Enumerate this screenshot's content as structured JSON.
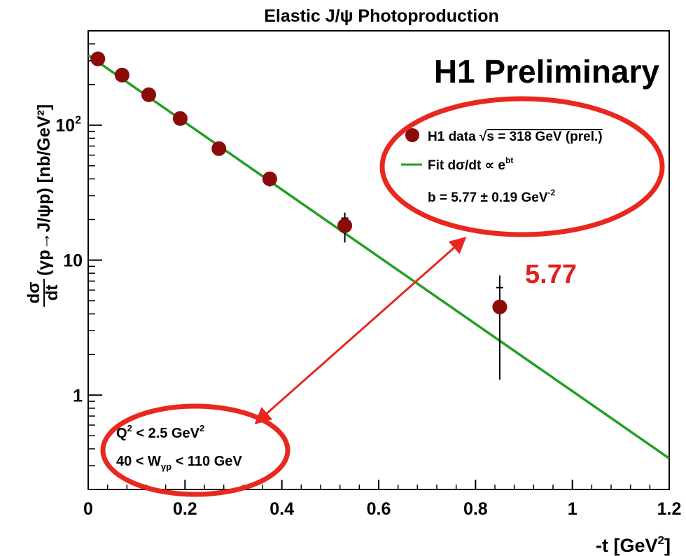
{
  "chart_data": {
    "type": "scatter",
    "title": "Elastic J/ψ Photoproduction",
    "xlabel": "-t [GeV²]",
    "ylabel": "dσ/dt(γp→J/ψp) [nb/GeV²]",
    "ylabel_frac": {
      "num": "dσ",
      "den": "dt"
    },
    "ylabel_rest": "(γp→J/ψp) [nb/GeV²]",
    "xlabel_text": {
      "base": "-t [GeV",
      "sup": "2",
      "close": "]"
    },
    "xlim": [
      0,
      1.2
    ],
    "ylim": [
      0.2,
      500
    ],
    "yscale": "log",
    "x_ticks": [
      "0",
      "0.2",
      "0.4",
      "0.6",
      "0.8",
      "1",
      "1.2"
    ],
    "y_ticks": [
      {
        "value": 1,
        "label": "1"
      },
      {
        "value": 10,
        "label": "10"
      },
      {
        "value": 100,
        "label": "10",
        "sup": "2"
      }
    ],
    "series": [
      {
        "name": "H1 data √s = 318 GeV (prel.)",
        "kind": "points",
        "color": "#8b0a0a",
        "points": [
          {
            "x": 0.02,
            "y": 310,
            "err": 30
          },
          {
            "x": 0.07,
            "y": 235,
            "err": 22
          },
          {
            "x": 0.125,
            "y": 168,
            "err": 15
          },
          {
            "x": 0.19,
            "y": 112,
            "err": 10
          },
          {
            "x": 0.27,
            "y": 67,
            "err": 7
          },
          {
            "x": 0.375,
            "y": 40,
            "err": 5
          },
          {
            "x": 0.53,
            "y": 18,
            "err": 4.5
          },
          {
            "x": 0.85,
            "y": 4.5,
            "err": 3.2
          }
        ]
      },
      {
        "name": "Fit dσ/dt ∝ e^bt",
        "kind": "fit",
        "color": "#22a022",
        "slope_b": 5.77,
        "line": [
          {
            "x": 0,
            "y": 330
          },
          {
            "x": 1.2,
            "y": 0.34
          }
        ]
      }
    ],
    "legend": {
      "position": "top-right",
      "entry_data": {
        "main": "H1 data ",
        "sqrt": "√",
        "s_eq": "s = 318 GeV (prel.)"
      },
      "entry_fit": {
        "main": "Fit dσ/dt ∝ e",
        "sup": "bt"
      },
      "fit_result": {
        "main": "b = 5.77 ± 0.19 GeV",
        "sup": "-2"
      }
    },
    "annotations": {
      "experiment": "H1 Preliminary",
      "highlight_value": "5.77",
      "cut_q2": {
        "a": "Q",
        "a_sup": "2",
        "b": " < 2.5 GeV",
        "b_sup": "2"
      },
      "cut_w": {
        "a": "40 < W",
        "a_sub": "γp",
        "b": " < 110 GeV"
      }
    },
    "colors": {
      "highlight": "#e8281e",
      "highlight_text": "#e02020"
    },
    "grid": false
  }
}
